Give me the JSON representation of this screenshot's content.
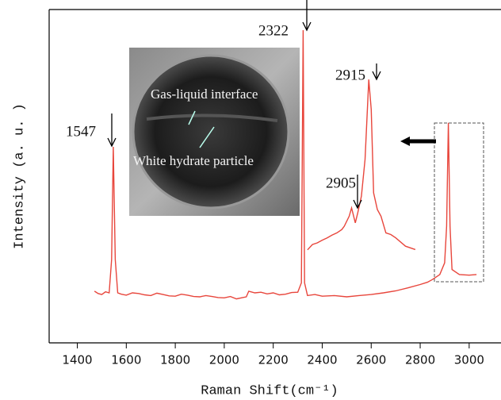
{
  "chart_data": {
    "type": "line",
    "x_label": "Raman Shift(cm⁻¹)",
    "y_label": "Intensity (a. u. )",
    "xlim": [
      1285,
      3130
    ],
    "ylim": [
      0,
      100
    ],
    "xticks": [
      1400,
      1600,
      1800,
      2000,
      2200,
      2400,
      2600,
      2800,
      3000
    ],
    "annotations": [
      "1547",
      "2322",
      "2915",
      "2905"
    ],
    "inset_image": {
      "labels": [
        "Gas-liquid interface",
        "White hydrate particle"
      ]
    },
    "series": [
      {
        "color": "#e8463c",
        "x": [
          1470,
          1485,
          1500,
          1515,
          1530,
          1540,
          1547,
          1555,
          1565,
          1580,
          1600,
          1625,
          1650,
          1675,
          1700,
          1725,
          1750,
          1775,
          1800,
          1825,
          1850,
          1875,
          1900,
          1925,
          1950,
          1975,
          2000,
          2025,
          2050,
          2075,
          2090,
          2100,
          2125,
          2150,
          2175,
          2200,
          2225,
          2250,
          2275,
          2300,
          2315,
          2322,
          2328,
          2340,
          2370,
          2400,
          2450,
          2500,
          2550,
          2600,
          2650,
          2700,
          2750,
          2800,
          2830,
          2850,
          2880,
          2900,
          2908,
          2915,
          2922,
          2930,
          2960,
          3000,
          3030
        ],
        "values": [
          15.5,
          14.8,
          14.5,
          15.3,
          15.0,
          25,
          58.8,
          25,
          15,
          14.6,
          14.3,
          15.0,
          14.8,
          14.4,
          14.2,
          14.9,
          14.5,
          14.1,
          14.0,
          14.6,
          14.3,
          13.9,
          13.8,
          14.2,
          13.9,
          13.6,
          13.5,
          13.9,
          13.2,
          13.6,
          13.8,
          15.5,
          15.0,
          15.2,
          14.7,
          15.0,
          14.4,
          14.6,
          15.1,
          15.2,
          18,
          93.8,
          18,
          14.2,
          14.5,
          14.0,
          14.2,
          13.8,
          14.2,
          14.5,
          15.0,
          15.6,
          16.5,
          17.5,
          18.2,
          19.0,
          20.5,
          24,
          35,
          66,
          35,
          22,
          20.5,
          20.3,
          20.5
        ]
      },
      {
        "color": "#e8463c",
        "x": [
          2340,
          2360,
          2380,
          2400,
          2420,
          2440,
          2460,
          2480,
          2490,
          2510,
          2520,
          2535,
          2545,
          2560,
          2575,
          2590,
          2600,
          2610,
          2625,
          2640,
          2660,
          2680,
          2700,
          2740,
          2780
        ],
        "values": [
          27.9,
          29.5,
          30.0,
          30.8,
          31.5,
          32.3,
          33.0,
          34.0,
          35.0,
          38.0,
          40.5,
          36.0,
          39.0,
          44.0,
          55.0,
          79.0,
          70.0,
          45.0,
          40.0,
          38.0,
          33.0,
          32.5,
          31.5,
          29.0,
          28.0
        ]
      }
    ]
  }
}
